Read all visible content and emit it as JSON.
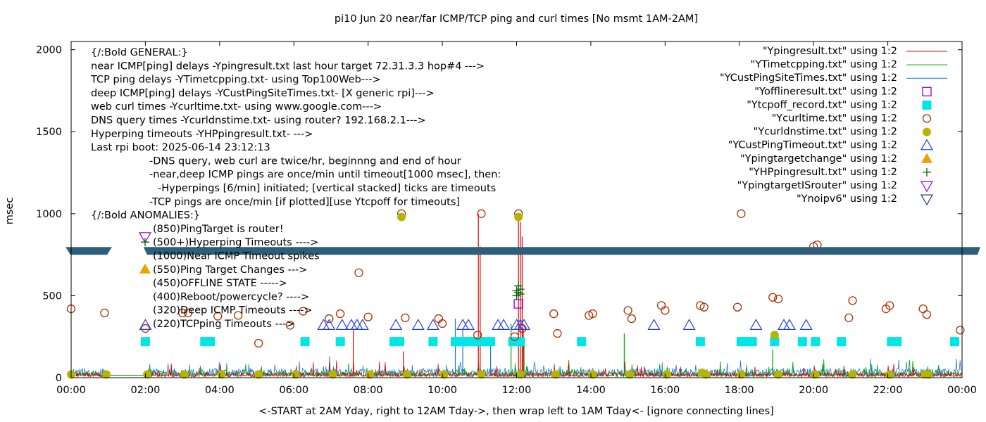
{
  "chart_data": {
    "type": "scatter",
    "title": "pi10 Jun 20  near/far ICMP/TCP ping and curl times [No msmt 1AM-2AM]",
    "xlabel": "<-START at 2AM Yday, right to 12AM Tday->, then wrap left to 1AM Tday<- [ignore connecting lines]",
    "ylabel": "msec",
    "xlim": [
      0,
      24
    ],
    "ylim": [
      0,
      2050
    ],
    "grid": false,
    "legend_position": "top-right",
    "x_ticks": [
      {
        "v": 0,
        "label": "00:00"
      },
      {
        "v": 2,
        "label": "02:00"
      },
      {
        "v": 4,
        "label": "04:00"
      },
      {
        "v": 6,
        "label": "06:00"
      },
      {
        "v": 8,
        "label": "08:00"
      },
      {
        "v": 10,
        "label": "10:00"
      },
      {
        "v": 12,
        "label": "12:00"
      },
      {
        "v": 14,
        "label": "14:00"
      },
      {
        "v": 16,
        "label": "16:00"
      },
      {
        "v": 18,
        "label": "18:00"
      },
      {
        "v": 20,
        "label": "20:00"
      },
      {
        "v": 22,
        "label": "22:00"
      },
      {
        "v": 24,
        "label": "00:00"
      }
    ],
    "y_ticks": [
      {
        "v": 0,
        "label": "0"
      },
      {
        "v": 500,
        "label": "500"
      },
      {
        "v": 1000,
        "label": "1000"
      },
      {
        "v": 1500,
        "label": "1500"
      },
      {
        "v": 2000,
        "label": "2000"
      }
    ],
    "annotations": [
      "{/:Bold GENERAL:}",
      "near ICMP[ping] delays -Ypingresult.txt last hour target 72.31.3.3 hop#4 --->",
      "TCP ping delays -YTimetcpping.txt- using Top100Web--->",
      "deep ICMP[ping] delays -YCustPingSiteTimes.txt- [X generic rpi]--->",
      "web curl times -Ycurltime.txt- using www.google.com--->",
      "DNS query times -Ycurldnstime.txt- using router? 192.168.2.1--->",
      "Hyperping timeouts -YHPpingresult.txt- --->",
      "Last rpi boot: 2025-06-14 23:12:13",
      "-DNS query, web curl are twice/hr, beginnng and end of hour",
      "-near,deep ICMP pings are once/min until timeout[1000 msec], then:",
      "-Hyperpings [6/min] initiated; [vertical stacked] ticks are timeouts",
      "-TCP pings are once/min [if plotted][use Ytcpoff for timeouts]",
      "{/:Bold ANOMALIES:}",
      "(850)PingTarget is router!",
      "(500+)Hyperping Timeouts ---->",
      "(1000)Near ICMP Timeout spikes",
      "(550)Ping Target Changes --->",
      "(450)OFFLINE STATE ----->",
      "(400)Reboot/powercycle? ---->",
      "(320)Deep ICMP Timeouts ---->",
      "(220)TCPping Timeouts --->"
    ],
    "band": {
      "y": 775
    },
    "series": [
      {
        "name": "\"Ypingresult.txt\" using 1:2",
        "color": "#e00000",
        "marker": "line",
        "spikes": [
          [
            10.97,
            1000
          ],
          [
            11.02,
            800
          ],
          [
            12.05,
            1000
          ],
          [
            12.1,
            950
          ],
          [
            12.15,
            860
          ],
          [
            12.18,
            300
          ],
          [
            8.95,
            160
          ],
          [
            7.6,
            300
          ]
        ]
      },
      {
        "name": "\"YTimetcpping.txt\" using 1:2",
        "color": "#00a000",
        "marker": "line",
        "spikes": [
          [
            11.85,
            330
          ],
          [
            12.2,
            200
          ],
          [
            14.9,
            270
          ],
          [
            18.9,
            170
          ]
        ]
      },
      {
        "name": "\"YCustPingSiteTimes.txt\" using 1:2",
        "color": "#1f77d4",
        "marker": "line",
        "spikes": [
          [
            10.35,
            360
          ],
          [
            10.55,
            300
          ],
          [
            11.3,
            210
          ]
        ]
      },
      {
        "name": "\"Yofflineresult.txt\" using 1:2",
        "color": "#9400d3",
        "marker": "open-square",
        "points": [
          [
            12.05,
            450
          ]
        ]
      },
      {
        "name": "\"Ytcpoff_record.txt\" using 1:2",
        "color": "#00e5e5",
        "marker": "filled-square",
        "points": [
          [
            2.0,
            220
          ],
          [
            3.6,
            220
          ],
          [
            3.75,
            220
          ],
          [
            6.3,
            220
          ],
          [
            7.25,
            220
          ],
          [
            8.7,
            220
          ],
          [
            8.85,
            220
          ],
          [
            9.75,
            220
          ],
          [
            10.35,
            220
          ],
          [
            10.5,
            220
          ],
          [
            10.65,
            220
          ],
          [
            10.8,
            220
          ],
          [
            11.0,
            220
          ],
          [
            11.15,
            220
          ],
          [
            11.3,
            220
          ],
          [
            11.9,
            220
          ],
          [
            12.1,
            220
          ],
          [
            13.75,
            220
          ],
          [
            16.95,
            220
          ],
          [
            18.05,
            220
          ],
          [
            18.2,
            220
          ],
          [
            18.35,
            220
          ],
          [
            18.95,
            220
          ],
          [
            19.7,
            220
          ],
          [
            20.05,
            220
          ],
          [
            20.75,
            220
          ],
          [
            22.1,
            220
          ],
          [
            22.25,
            220
          ],
          [
            23.8,
            220
          ]
        ]
      },
      {
        "name": "\"Ycurltime.txt\" using 1:2",
        "color": "#b03000",
        "marker": "open-circle",
        "points": [
          [
            0.0,
            420
          ],
          [
            0.9,
            395
          ],
          [
            2.0,
            300
          ],
          [
            3.0,
            395
          ],
          [
            3.15,
            395
          ],
          [
            3.95,
            375
          ],
          [
            4.5,
            380
          ],
          [
            5.05,
            210
          ],
          [
            5.9,
            320
          ],
          [
            6.25,
            405
          ],
          [
            6.95,
            360
          ],
          [
            7.25,
            390
          ],
          [
            7.75,
            640
          ],
          [
            8.0,
            370
          ],
          [
            8.9,
            1000
          ],
          [
            9.0,
            365
          ],
          [
            9.9,
            360
          ],
          [
            10.0,
            330
          ],
          [
            10.95,
            260
          ],
          [
            11.05,
            1000
          ],
          [
            11.95,
            250
          ],
          [
            12.05,
            1000
          ],
          [
            12.15,
            300
          ],
          [
            13.0,
            390
          ],
          [
            13.1,
            270
          ],
          [
            13.95,
            380
          ],
          [
            14.05,
            390
          ],
          [
            15.0,
            410
          ],
          [
            15.1,
            360
          ],
          [
            15.9,
            440
          ],
          [
            16.0,
            410
          ],
          [
            16.95,
            440
          ],
          [
            17.05,
            430
          ],
          [
            17.95,
            430
          ],
          [
            18.05,
            1000
          ],
          [
            18.9,
            490
          ],
          [
            19.05,
            480
          ],
          [
            20.0,
            800
          ],
          [
            20.1,
            810
          ],
          [
            20.95,
            365
          ],
          [
            21.05,
            470
          ],
          [
            21.95,
            420
          ],
          [
            22.05,
            440
          ],
          [
            22.95,
            420
          ],
          [
            23.05,
            385
          ],
          [
            23.95,
            290
          ]
        ]
      },
      {
        "name": "\"Ycurldnstime.txt\" using 1:2",
        "color": "#b5b500",
        "marker": "filled-circle",
        "points": [
          [
            0.0,
            20
          ],
          [
            0.95,
            20
          ],
          [
            2.05,
            20
          ],
          [
            3.05,
            20
          ],
          [
            4.05,
            20
          ],
          [
            5.05,
            20
          ],
          [
            6.05,
            20
          ],
          [
            7.05,
            20
          ],
          [
            8.05,
            20
          ],
          [
            8.9,
            980
          ],
          [
            9.05,
            20
          ],
          [
            10.05,
            20
          ],
          [
            11.05,
            20
          ],
          [
            12.05,
            980
          ],
          [
            12.1,
            20
          ],
          [
            13.05,
            20
          ],
          [
            14.05,
            20
          ],
          [
            15.05,
            20
          ],
          [
            16.05,
            20
          ],
          [
            17.0,
            30
          ],
          [
            17.1,
            20
          ],
          [
            18.05,
            20
          ],
          [
            18.95,
            260
          ],
          [
            19.05,
            20
          ],
          [
            20.05,
            20
          ],
          [
            21.05,
            20
          ],
          [
            22.05,
            20
          ],
          [
            23.0,
            20
          ],
          [
            23.1,
            20
          ]
        ]
      },
      {
        "name": "\"YCustPingTimeout.txt\" using 1:2",
        "color": "#2040e0",
        "marker": "open-triangle-up",
        "points": [
          [
            2.0,
            320
          ],
          [
            6.8,
            320
          ],
          [
            6.95,
            320
          ],
          [
            7.3,
            320
          ],
          [
            7.55,
            320
          ],
          [
            7.7,
            320
          ],
          [
            7.85,
            320
          ],
          [
            8.75,
            320
          ],
          [
            9.35,
            320
          ],
          [
            9.75,
            320
          ],
          [
            10.55,
            320
          ],
          [
            10.7,
            320
          ],
          [
            11.5,
            320
          ],
          [
            11.65,
            320
          ],
          [
            12.0,
            320
          ],
          [
            12.1,
            320
          ],
          [
            12.2,
            320
          ],
          [
            15.7,
            320
          ],
          [
            16.65,
            320
          ],
          [
            18.45,
            320
          ],
          [
            19.2,
            320
          ],
          [
            19.35,
            320
          ],
          [
            19.8,
            320
          ]
        ]
      },
      {
        "name": "\"Ypingtargetchange\" using 1:2",
        "color": "#f0a000",
        "marker": "filled-triangle-up",
        "points": []
      },
      {
        "name": "\"YHPpingresult.txt\" using 1:2",
        "color": "#006400",
        "marker": "plus",
        "points": [
          [
            12.0,
            500
          ],
          [
            12.05,
            520
          ],
          [
            12.1,
            540
          ],
          [
            12.05,
            560
          ],
          [
            12.1,
            510
          ],
          [
            12.0,
            530
          ]
        ]
      },
      {
        "name": "\"YpingtargetISrouter\" using 1:2",
        "color": "#9400d3",
        "marker": "open-triangle-down",
        "points": []
      },
      {
        "name": "\"Ynoipv6\" using 1:2",
        "color": "#203c80",
        "marker": "open-triangle-down",
        "points": []
      }
    ]
  }
}
